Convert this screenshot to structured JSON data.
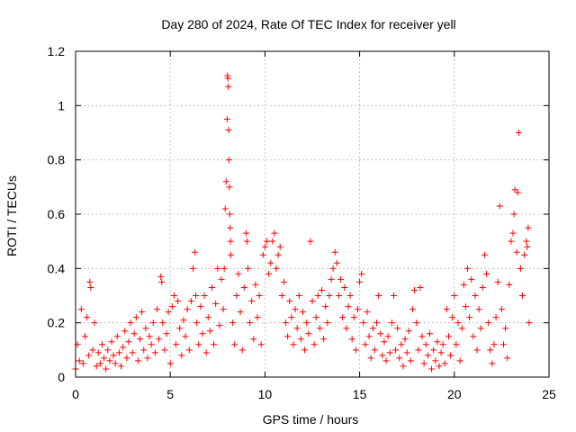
{
  "chart_data": {
    "type": "scatter",
    "title": "Day 280 of 2024, Rate Of TEC Index for receiver yell",
    "xlabel": "GPS time / hours",
    "ylabel": "ROTI / TECUs",
    "xlim": [
      0,
      25
    ],
    "ylim": [
      0,
      1.2
    ],
    "xticks": [
      0,
      5,
      10,
      15,
      20,
      25
    ],
    "xtick_labels": [
      "0",
      "5",
      "10",
      "15",
      "20",
      "25"
    ],
    "yticks": [
      0,
      0.2,
      0.4,
      0.6,
      0.8,
      1.0,
      1.2
    ],
    "ytick_labels": [
      "0",
      "0.2",
      "0.4",
      "0.6",
      "0.8",
      "1",
      "1.2"
    ],
    "grid": true,
    "marker": "plus",
    "color": "#ff0000",
    "series": [
      {
        "name": "ROTI",
        "points": [
          [
            0.0,
            0.03
          ],
          [
            0.1,
            0.12
          ],
          [
            0.2,
            0.06
          ],
          [
            0.3,
            0.25
          ],
          [
            0.4,
            0.05
          ],
          [
            0.5,
            0.15
          ],
          [
            0.6,
            0.22
          ],
          [
            0.7,
            0.08
          ],
          [
            0.75,
            0.35
          ],
          [
            0.8,
            0.33
          ],
          [
            0.9,
            0.1
          ],
          [
            1.0,
            0.2
          ],
          [
            1.1,
            0.04
          ],
          [
            1.2,
            0.09
          ],
          [
            1.3,
            0.05
          ],
          [
            1.4,
            0.12
          ],
          [
            1.5,
            0.07
          ],
          [
            1.6,
            0.03
          ],
          [
            1.7,
            0.1
          ],
          [
            1.8,
            0.06
          ],
          [
            1.9,
            0.13
          ],
          [
            2.0,
            0.08
          ],
          [
            2.1,
            0.05
          ],
          [
            2.2,
            0.15
          ],
          [
            2.3,
            0.09
          ],
          [
            2.4,
            0.04
          ],
          [
            2.5,
            0.11
          ],
          [
            2.6,
            0.17
          ],
          [
            2.7,
            0.07
          ],
          [
            2.8,
            0.13
          ],
          [
            2.9,
            0.2
          ],
          [
            3.0,
            0.09
          ],
          [
            3.1,
            0.16
          ],
          [
            3.2,
            0.22
          ],
          [
            3.3,
            0.06
          ],
          [
            3.4,
            0.14
          ],
          [
            3.5,
            0.24
          ],
          [
            3.6,
            0.1
          ],
          [
            3.7,
            0.18
          ],
          [
            3.8,
            0.07
          ],
          [
            3.9,
            0.15
          ],
          [
            4.0,
            0.12
          ],
          [
            4.1,
            0.2
          ],
          [
            4.2,
            0.09
          ],
          [
            4.3,
            0.25
          ],
          [
            4.4,
            0.14
          ],
          [
            4.5,
            0.37
          ],
          [
            4.55,
            0.35
          ],
          [
            4.6,
            0.2
          ],
          [
            4.7,
            0.1
          ],
          [
            4.8,
            0.16
          ],
          [
            4.9,
            0.24
          ],
          [
            5.0,
            0.05
          ],
          [
            5.1,
            0.26
          ],
          [
            5.2,
            0.3
          ],
          [
            5.3,
            0.12
          ],
          [
            5.4,
            0.28
          ],
          [
            5.5,
            0.18
          ],
          [
            5.6,
            0.08
          ],
          [
            5.7,
            0.21
          ],
          [
            5.8,
            0.15
          ],
          [
            5.9,
            0.25
          ],
          [
            6.0,
            0.1
          ],
          [
            6.1,
            0.28
          ],
          [
            6.2,
            0.4
          ],
          [
            6.3,
            0.46
          ],
          [
            6.35,
            0.3
          ],
          [
            6.4,
            0.2
          ],
          [
            6.5,
            0.12
          ],
          [
            6.6,
            0.26
          ],
          [
            6.7,
            0.16
          ],
          [
            6.8,
            0.3
          ],
          [
            6.9,
            0.09
          ],
          [
            7.0,
            0.22
          ],
          [
            7.1,
            0.17
          ],
          [
            7.2,
            0.33
          ],
          [
            7.3,
            0.12
          ],
          [
            7.4,
            0.27
          ],
          [
            7.5,
            0.4
          ],
          [
            7.6,
            0.19
          ],
          [
            7.7,
            0.36
          ],
          [
            7.8,
            0.25
          ],
          [
            7.85,
            0.4
          ],
          [
            7.9,
            0.62
          ],
          [
            7.95,
            0.72
          ],
          [
            8.0,
            0.95
          ],
          [
            8.02,
            1.11
          ],
          [
            8.04,
            1.1
          ],
          [
            8.06,
            1.07
          ],
          [
            8.08,
            0.91
          ],
          [
            8.1,
            0.8
          ],
          [
            8.12,
            0.7
          ],
          [
            8.14,
            0.6
          ],
          [
            8.16,
            0.55
          ],
          [
            8.18,
            0.5
          ],
          [
            8.2,
            0.45
          ],
          [
            8.3,
            0.2
          ],
          [
            8.4,
            0.12
          ],
          [
            8.5,
            0.3
          ],
          [
            8.6,
            0.38
          ],
          [
            8.7,
            0.24
          ],
          [
            8.8,
            0.1
          ],
          [
            8.9,
            0.33
          ],
          [
            9.0,
            0.53
          ],
          [
            9.05,
            0.5
          ],
          [
            9.1,
            0.4
          ],
          [
            9.2,
            0.2
          ],
          [
            9.3,
            0.28
          ],
          [
            9.4,
            0.14
          ],
          [
            9.5,
            0.34
          ],
          [
            9.6,
            0.22
          ],
          [
            9.7,
            0.3
          ],
          [
            9.8,
            0.12
          ],
          [
            9.9,
            0.45
          ],
          [
            10.0,
            0.48
          ],
          [
            10.1,
            0.5
          ],
          [
            10.2,
            0.38
          ],
          [
            10.3,
            0.42
          ],
          [
            10.4,
            0.5
          ],
          [
            10.5,
            0.53
          ],
          [
            10.6,
            0.4
          ],
          [
            10.7,
            0.45
          ],
          [
            10.8,
            0.48
          ],
          [
            10.9,
            0.3
          ],
          [
            11.0,
            0.35
          ],
          [
            11.1,
            0.2
          ],
          [
            11.2,
            0.15
          ],
          [
            11.3,
            0.28
          ],
          [
            11.4,
            0.22
          ],
          [
            11.5,
            0.12
          ],
          [
            11.6,
            0.25
          ],
          [
            11.7,
            0.18
          ],
          [
            11.8,
            0.3
          ],
          [
            11.9,
            0.14
          ],
          [
            12.0,
            0.24
          ],
          [
            12.1,
            0.1
          ],
          [
            12.2,
            0.2
          ],
          [
            12.3,
            0.16
          ],
          [
            12.4,
            0.5
          ],
          [
            12.5,
            0.28
          ],
          [
            12.6,
            0.12
          ],
          [
            12.7,
            0.22
          ],
          [
            12.8,
            0.3
          ],
          [
            12.9,
            0.18
          ],
          [
            13.0,
            0.32
          ],
          [
            13.1,
            0.14
          ],
          [
            13.2,
            0.26
          ],
          [
            13.3,
            0.2
          ],
          [
            13.4,
            0.3
          ],
          [
            13.5,
            0.36
          ],
          [
            13.6,
            0.4
          ],
          [
            13.7,
            0.46
          ],
          [
            13.8,
            0.42
          ],
          [
            13.9,
            0.3
          ],
          [
            14.0,
            0.36
          ],
          [
            14.1,
            0.22
          ],
          [
            14.2,
            0.33
          ],
          [
            14.3,
            0.18
          ],
          [
            14.4,
            0.26
          ],
          [
            14.5,
            0.3
          ],
          [
            14.6,
            0.14
          ],
          [
            14.7,
            0.22
          ],
          [
            14.8,
            0.1
          ],
          [
            14.9,
            0.25
          ],
          [
            15.0,
            0.35
          ],
          [
            15.1,
            0.38
          ],
          [
            15.2,
            0.2
          ],
          [
            15.3,
            0.12
          ],
          [
            15.4,
            0.24
          ],
          [
            15.5,
            0.15
          ],
          [
            15.6,
            0.07
          ],
          [
            15.7,
            0.18
          ],
          [
            15.8,
            0.1
          ],
          [
            15.9,
            0.2
          ],
          [
            16.0,
            0.3
          ],
          [
            16.1,
            0.16
          ],
          [
            16.2,
            0.08
          ],
          [
            16.3,
            0.13
          ],
          [
            16.4,
            0.06
          ],
          [
            16.5,
            0.15
          ],
          [
            16.6,
            0.09
          ],
          [
            16.7,
            0.2
          ],
          [
            16.8,
            0.3
          ],
          [
            16.9,
            0.1
          ],
          [
            17.0,
            0.18
          ],
          [
            17.1,
            0.07
          ],
          [
            17.2,
            0.12
          ],
          [
            17.3,
            0.04
          ],
          [
            17.4,
            0.14
          ],
          [
            17.5,
            0.09
          ],
          [
            17.6,
            0.17
          ],
          [
            17.7,
            0.06
          ],
          [
            17.8,
            0.25
          ],
          [
            17.9,
            0.32
          ],
          [
            18.0,
            0.2
          ],
          [
            18.1,
            0.1
          ],
          [
            18.2,
            0.33
          ],
          [
            18.3,
            0.15
          ],
          [
            18.4,
            0.05
          ],
          [
            18.5,
            0.12
          ],
          [
            18.6,
            0.08
          ],
          [
            18.7,
            0.16
          ],
          [
            18.8,
            0.03
          ],
          [
            18.9,
            0.1
          ],
          [
            19.0,
            0.06
          ],
          [
            19.1,
            0.13
          ],
          [
            19.2,
            0.04
          ],
          [
            19.3,
            0.09
          ],
          [
            19.4,
            0.12
          ],
          [
            19.5,
            0.05
          ],
          [
            19.6,
            0.25
          ],
          [
            19.7,
            0.15
          ],
          [
            19.8,
            0.08
          ],
          [
            19.9,
            0.22
          ],
          [
            20.0,
            0.3
          ],
          [
            20.1,
            0.12
          ],
          [
            20.2,
            0.2
          ],
          [
            20.3,
            0.06
          ],
          [
            20.4,
            0.18
          ],
          [
            20.5,
            0.34
          ],
          [
            20.6,
            0.26
          ],
          [
            20.7,
            0.4
          ],
          [
            20.8,
            0.22
          ],
          [
            20.9,
            0.36
          ],
          [
            21.0,
            0.15
          ],
          [
            21.1,
            0.3
          ],
          [
            21.2,
            0.1
          ],
          [
            21.3,
            0.25
          ],
          [
            21.4,
            0.18
          ],
          [
            21.5,
            0.33
          ],
          [
            21.6,
            0.45
          ],
          [
            21.7,
            0.38
          ],
          [
            21.8,
            0.2
          ],
          [
            21.9,
            0.1
          ],
          [
            22.0,
            0.05
          ],
          [
            22.1,
            0.12
          ],
          [
            22.2,
            0.22
          ],
          [
            22.3,
            0.35
          ],
          [
            22.4,
            0.63
          ],
          [
            22.5,
            0.25
          ],
          [
            22.6,
            0.12
          ],
          [
            22.7,
            0.18
          ],
          [
            22.8,
            0.07
          ],
          [
            22.9,
            0.34
          ],
          [
            23.0,
            0.5
          ],
          [
            23.1,
            0.53
          ],
          [
            23.15,
            0.6
          ],
          [
            23.2,
            0.69
          ],
          [
            23.3,
            0.46
          ],
          [
            23.35,
            0.68
          ],
          [
            23.4,
            0.9
          ],
          [
            23.5,
            0.4
          ],
          [
            23.6,
            0.3
          ],
          [
            23.7,
            0.45
          ],
          [
            23.8,
            0.5
          ],
          [
            23.85,
            0.48
          ],
          [
            23.9,
            0.55
          ],
          [
            23.95,
            0.2
          ]
        ]
      }
    ]
  }
}
